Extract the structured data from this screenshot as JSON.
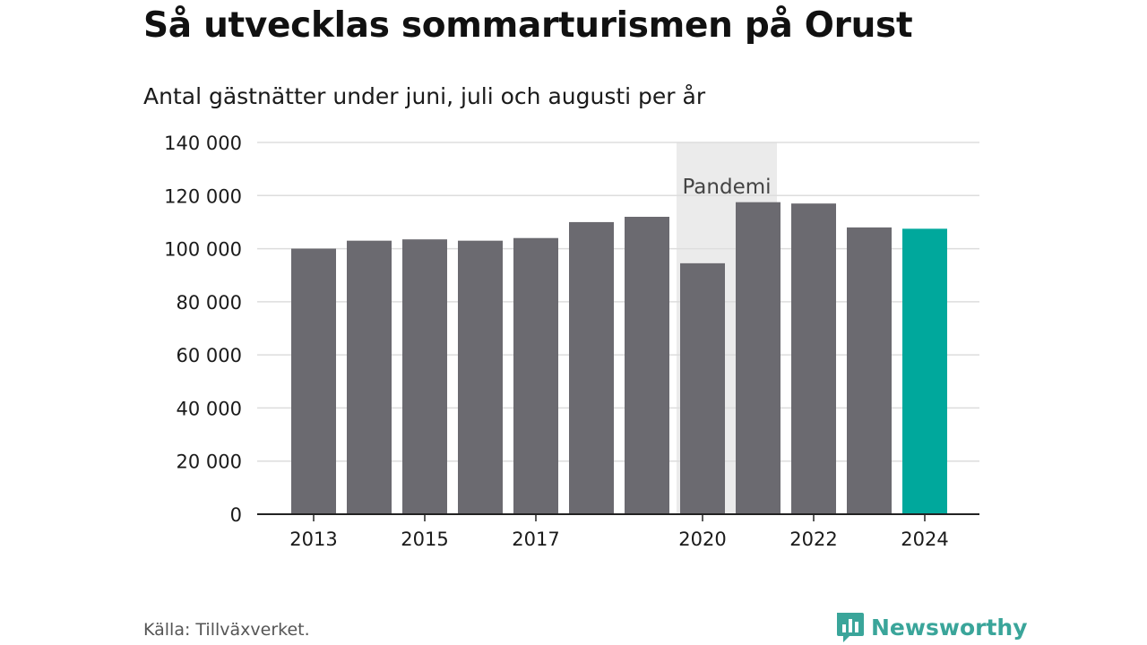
{
  "chart_data": {
    "type": "bar",
    "title": "Så utvecklas sommarturismen på Orust",
    "subtitle": "Antal gästnätter under juni, juli och augusti per år",
    "categories": [
      "2013",
      "2014",
      "2015",
      "2016",
      "2017",
      "2018",
      "2019",
      "2020",
      "2021",
      "2022",
      "2023",
      "2024"
    ],
    "x_tick_labels": [
      "2013",
      "",
      "2015",
      "",
      "2017",
      "",
      "",
      "2020",
      "",
      "2022",
      "",
      "2024"
    ],
    "values": [
      100000,
      103000,
      103500,
      103000,
      104000,
      110000,
      112000,
      94500,
      117500,
      117000,
      108000,
      107500
    ],
    "ylim": [
      0,
      140000
    ],
    "y_ticks": [
      0,
      20000,
      40000,
      60000,
      80000,
      100000,
      120000,
      140000
    ],
    "y_tick_labels": [
      "0",
      "20 000",
      "40 000",
      "60 000",
      "80 000",
      "100 000",
      "120 000",
      "140 000"
    ],
    "grid": true,
    "highlight_index": 11,
    "colors": {
      "bar": "#6b6a70",
      "highlight": "#00a89c",
      "grid": "#dddddd",
      "axis": "#222222",
      "band": "#ebebeb"
    },
    "annotations": [
      {
        "label": "Pandemi",
        "from": "2020",
        "to": "2021"
      }
    ]
  },
  "footer": {
    "source": "Källa: Tillväxverket.",
    "logo_text": "Newsworthy",
    "logo_color": "#3aa59a"
  }
}
